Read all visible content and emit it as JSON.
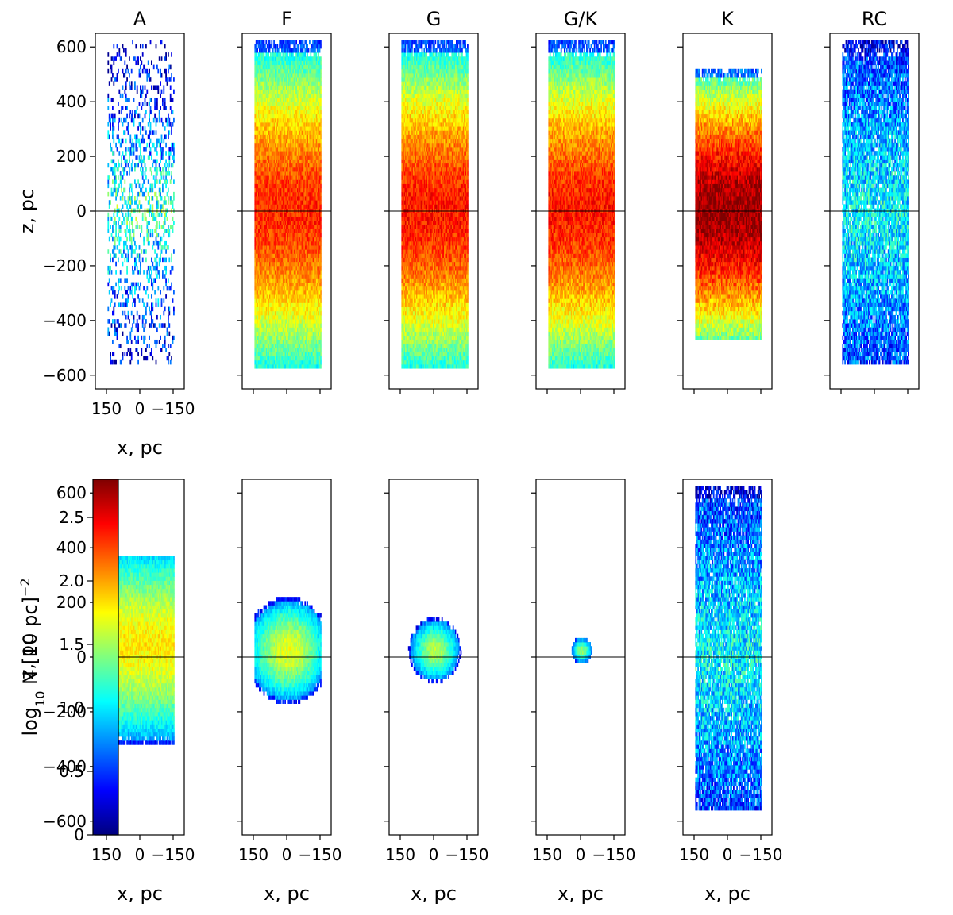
{
  "figure": {
    "colorbar": {
      "label_prefix": "log",
      "label_sub": "10",
      "label_main": " N [10 pc]",
      "label_sup": "−2",
      "ticks": [
        "0",
        "0.5",
        "1.0",
        "1.5",
        "2.0",
        "2.5"
      ],
      "tick_values": [
        0,
        0.5,
        1.0,
        1.5,
        2.0,
        2.5
      ],
      "range": [
        0,
        2.8
      ],
      "colormap": "jet",
      "colors": [
        "#00007f",
        "#0000ff",
        "#007fff",
        "#00ffff",
        "#7fff7f",
        "#ffff00",
        "#ff7f00",
        "#ff0000",
        "#7f0000"
      ]
    }
  },
  "chart_data": [
    {
      "type": "heatmap",
      "row": "top",
      "title": "A",
      "xlabel": "x,  pc",
      "ylabel": "z,  pc",
      "x_ticks": [
        "150",
        "0",
        "−150"
      ],
      "x_tick_values": [
        150,
        0,
        -150
      ],
      "y_ticks": [
        "−600",
        "−400",
        "−200",
        "0",
        "200",
        "400",
        "600"
      ],
      "y_tick_values": [
        -600,
        -400,
        -200,
        0,
        200,
        400,
        600
      ],
      "xlim": [
        200,
        -200
      ],
      "ylim": [
        -650,
        650
      ],
      "region": {
        "shape": "rect",
        "x_range": [
          150,
          -150
        ],
        "z_range": [
          -560,
          620
        ]
      },
      "value_peak": 1.3,
      "value_peak_z": 0,
      "scatter": "sparse",
      "reference_line_z": 0
    },
    {
      "type": "heatmap",
      "row": "top",
      "title": "F",
      "xlabel": "",
      "ylabel": "",
      "x_ticks": [],
      "x_tick_values": [
        150,
        0,
        -150
      ],
      "y_ticks": [],
      "y_tick_values": [
        -600,
        -400,
        -200,
        0,
        200,
        400,
        600
      ],
      "xlim": [
        200,
        -200
      ],
      "ylim": [
        -650,
        650
      ],
      "region": {
        "shape": "rect",
        "x_range": [
          150,
          -150
        ],
        "z_range": [
          -575,
          620
        ]
      },
      "value_peak": 2.35,
      "value_peak_z": 0,
      "scatter": "dense",
      "reference_line_z": 0
    },
    {
      "type": "heatmap",
      "row": "top",
      "title": "G",
      "xlabel": "",
      "ylabel": "",
      "x_ticks": [],
      "x_tick_values": [
        150,
        0,
        -150
      ],
      "y_ticks": [],
      "y_tick_values": [
        -600,
        -400,
        -200,
        0,
        200,
        400,
        600
      ],
      "xlim": [
        200,
        -200
      ],
      "ylim": [
        -650,
        650
      ],
      "region": {
        "shape": "rect",
        "x_range": [
          150,
          -150
        ],
        "z_range": [
          -570,
          620
        ]
      },
      "value_peak": 2.4,
      "value_peak_z": 0,
      "scatter": "dense",
      "reference_line_z": 0
    },
    {
      "type": "heatmap",
      "row": "top",
      "title": "G/K",
      "xlabel": "",
      "ylabel": "",
      "x_ticks": [],
      "x_tick_values": [
        150,
        0,
        -150
      ],
      "y_ticks": [],
      "y_tick_values": [
        -600,
        -400,
        -200,
        0,
        200,
        400,
        600
      ],
      "xlim": [
        200,
        -200
      ],
      "ylim": [
        -650,
        650
      ],
      "region": {
        "shape": "rect",
        "x_range": [
          150,
          -150
        ],
        "z_range": [
          -575,
          620
        ]
      },
      "value_peak": 2.4,
      "value_peak_z": 0,
      "scatter": "dense",
      "reference_line_z": 0
    },
    {
      "type": "heatmap",
      "row": "top",
      "title": "K",
      "xlabel": "",
      "ylabel": "",
      "x_ticks": [],
      "x_tick_values": [
        150,
        0,
        -150
      ],
      "y_ticks": [],
      "y_tick_values": [
        -600,
        -400,
        -200,
        0,
        200,
        400,
        600
      ],
      "xlim": [
        200,
        -200
      ],
      "ylim": [
        -650,
        650
      ],
      "region": {
        "shape": "rect",
        "x_range": [
          150,
          -150
        ],
        "z_range": [
          -475,
          520
        ]
      },
      "value_peak": 2.75,
      "value_peak_z": 0,
      "scatter": "dense",
      "reference_line_z": 0
    },
    {
      "type": "heatmap",
      "row": "top",
      "title": "RC",
      "xlabel": "",
      "ylabel": "",
      "x_ticks": [],
      "x_tick_values": [
        150,
        0,
        -150
      ],
      "y_ticks": [],
      "y_tick_values": [
        -600,
        -400,
        -200,
        0,
        200,
        400,
        600
      ],
      "xlim": [
        200,
        -200
      ],
      "ylim": [
        -650,
        650
      ],
      "region": {
        "shape": "rect",
        "x_range": [
          150,
          -150
        ],
        "z_range": [
          -555,
          620
        ]
      },
      "value_peak": 1.05,
      "value_peak_z": 0,
      "scatter": "medium",
      "reference_line_z": 0
    },
    {
      "type": "heatmap",
      "row": "bottom",
      "title": "",
      "xlabel": "x,  pc",
      "ylabel": "z,  pc",
      "x_ticks": [
        "150",
        "0",
        "−150"
      ],
      "x_tick_values": [
        150,
        0,
        -150
      ],
      "y_ticks": [
        "−600",
        "−400",
        "−200",
        "0",
        "200",
        "400",
        "600"
      ],
      "y_tick_values": [
        -600,
        -400,
        -200,
        0,
        200,
        400,
        600
      ],
      "xlim": [
        200,
        -200
      ],
      "ylim": [
        -650,
        650
      ],
      "region": {
        "shape": "rect",
        "x_range": [
          150,
          -150
        ],
        "z_range": [
          -320,
          370
        ]
      },
      "value_peak": 1.8,
      "value_peak_z": 50,
      "scatter": "dense",
      "reference_line_z": 0
    },
    {
      "type": "heatmap",
      "row": "bottom",
      "title": "",
      "xlabel": "x,  pc",
      "ylabel": "",
      "x_ticks": [
        "150",
        "0",
        "−150"
      ],
      "x_tick_values": [
        150,
        0,
        -150
      ],
      "y_ticks": [],
      "y_tick_values": [
        -600,
        -400,
        -200,
        0,
        200,
        400,
        600
      ],
      "xlim": [
        200,
        -200
      ],
      "ylim": [
        -650,
        650
      ],
      "region": {
        "shape": "circle",
        "center": [
          0,
          25
        ],
        "radius": 195,
        "x_clip": [
          150,
          -150
        ]
      },
      "value_peak": 1.7,
      "value_peak_z": 25,
      "scatter": "dense",
      "reference_line_z": 0
    },
    {
      "type": "heatmap",
      "row": "bottom",
      "title": "",
      "xlabel": "x,  pc",
      "ylabel": "",
      "x_ticks": [
        "150",
        "0",
        "−150"
      ],
      "x_tick_values": [
        150,
        0,
        -150
      ],
      "y_ticks": [],
      "y_tick_values": [
        -600,
        -400,
        -200,
        0,
        200,
        400,
        600
      ],
      "xlim": [
        200,
        -200
      ],
      "ylim": [
        -650,
        650
      ],
      "region": {
        "shape": "circle",
        "center": [
          0,
          25
        ],
        "radius": 118,
        "x_clip": [
          150,
          -150
        ]
      },
      "value_peak": 1.55,
      "value_peak_z": 25,
      "scatter": "dense",
      "reference_line_z": 0
    },
    {
      "type": "heatmap",
      "row": "bottom",
      "title": "",
      "xlabel": "x,  pc",
      "ylabel": "",
      "x_ticks": [
        "150",
        "0",
        "−150"
      ],
      "x_tick_values": [
        150,
        0,
        -150
      ],
      "y_ticks": [],
      "y_tick_values": [
        -600,
        -400,
        -200,
        0,
        200,
        400,
        600
      ],
      "xlim": [
        200,
        -200
      ],
      "ylim": [
        -650,
        650
      ],
      "region": {
        "shape": "circle",
        "center": [
          0,
          25
        ],
        "radius": 48,
        "x_clip": [
          150,
          -150
        ]
      },
      "value_peak": 1.45,
      "value_peak_z": 25,
      "scatter": "dense",
      "reference_line_z": 0
    },
    {
      "type": "heatmap",
      "row": "bottom",
      "title": "",
      "xlabel": "x,  pc",
      "ylabel": "",
      "x_ticks": [
        "150",
        "0",
        "−150"
      ],
      "x_tick_values": [
        150,
        0,
        -150
      ],
      "y_ticks": [],
      "y_tick_values": [
        -600,
        -400,
        -200,
        0,
        200,
        400,
        600
      ],
      "xlim": [
        200,
        -200
      ],
      "ylim": [
        -650,
        650
      ],
      "region": {
        "shape": "rect",
        "x_range": [
          150,
          -150
        ],
        "z_range": [
          -555,
          620
        ]
      },
      "value_peak": 1.05,
      "value_peak_z": 0,
      "scatter": "medium",
      "reference_line_z": 0
    }
  ]
}
